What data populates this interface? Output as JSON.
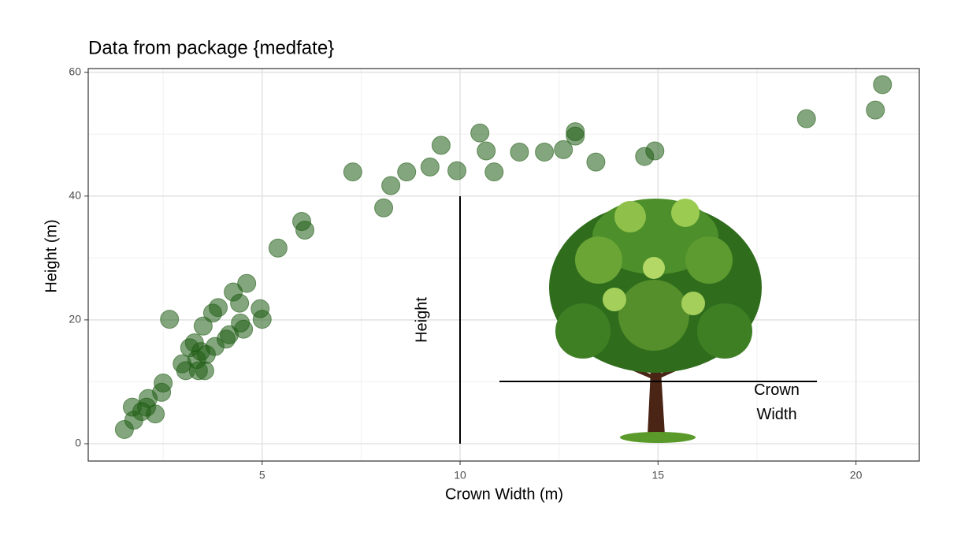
{
  "chart_data": {
    "type": "scatter",
    "title": "Data from package {medfate}",
    "x_label": "Crown Width (m)",
    "y_label": "Height (m)",
    "annotations": [
      "Height",
      "Crown Width"
    ],
    "color": "#1f5c14",
    "grid": true,
    "xlim": [
      0.607,
      21.6
    ],
    "ylim": [
      -2.8,
      60.6
    ],
    "xticks": [
      5,
      10,
      15,
      20
    ],
    "yticks": [
      0,
      20,
      40,
      60
    ],
    "x": [
      1.52,
      1.76,
      1.72,
      1.96,
      2.08,
      2.12,
      2.3,
      2.46,
      2.5,
      2.66,
      2.98,
      3.07,
      3.17,
      3.29,
      3.35,
      3.39,
      3.45,
      3.55,
      3.51,
      3.59,
      3.75,
      3.89,
      3.81,
      4.09,
      4.17,
      4.27,
      4.43,
      4.45,
      4.53,
      4.61,
      4.95,
      5.0,
      5.4,
      6.0,
      6.08,
      7.29,
      8.07,
      8.25,
      8.65,
      9.24,
      9.52,
      9.92,
      10.5,
      10.66,
      10.86,
      11.5,
      12.13,
      12.61,
      12.91,
      12.91,
      13.43,
      14.66,
      14.92,
      18.75,
      20.49,
      20.67
    ],
    "values": [
      2.3,
      3.8,
      5.9,
      5.2,
      5.9,
      7.3,
      4.8,
      8.3,
      9.8,
      20.1,
      12.9,
      11.8,
      15.5,
      16.3,
      13.6,
      11.8,
      14.9,
      11.8,
      19.0,
      14.4,
      21.1,
      22.0,
      15.7,
      16.9,
      17.6,
      24.5,
      22.7,
      19.5,
      18.5,
      25.9,
      21.8,
      20.1,
      31.6,
      35.9,
      34.5,
      43.9,
      38.1,
      41.7,
      43.9,
      44.7,
      48.2,
      44.1,
      50.2,
      47.3,
      43.9,
      47.1,
      47.1,
      47.5,
      50.4,
      49.7,
      45.5,
      46.4,
      47.3,
      52.5,
      53.9,
      58.0
    ]
  }
}
